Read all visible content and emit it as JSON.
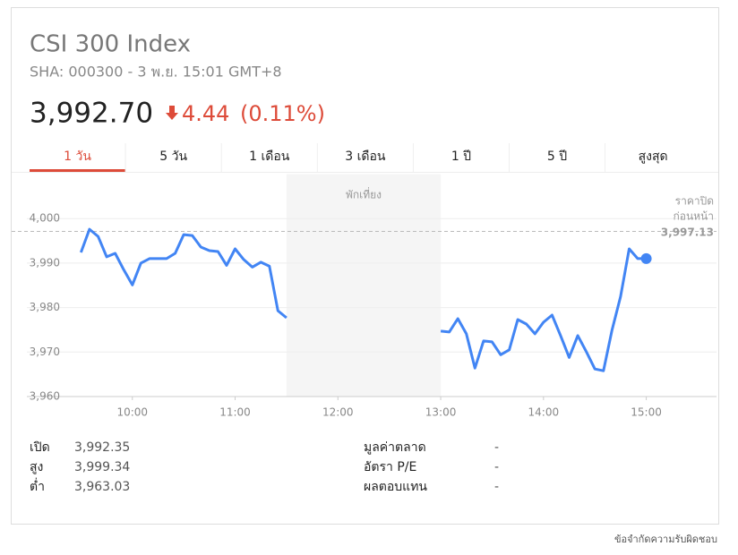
{
  "header": {
    "title": "CSI 300 Index",
    "subtitle": "SHA: 000300 - 3 พ.ย. 15:01 GMT+8",
    "price": "3,992.70",
    "change": "4.44",
    "change_percent": "(0.11%)"
  },
  "tabs": {
    "labels": [
      "1 วัน",
      "5 วัน",
      "1 เดือน",
      "3 เดือน",
      "1 ปี",
      "5 ปี",
      "สูงสุด"
    ],
    "selected": 0
  },
  "chart_data": {
    "type": "line",
    "x": [
      570,
      575,
      580,
      585,
      590,
      595,
      600,
      605,
      610,
      615,
      620,
      625,
      630,
      635,
      640,
      645,
      650,
      655,
      660,
      665,
      670,
      675,
      680,
      685,
      690,
      735,
      780,
      785,
      790,
      795,
      800,
      805,
      810,
      815,
      820,
      825,
      830,
      835,
      840,
      845,
      850,
      855,
      860,
      865,
      870,
      875,
      880,
      885,
      890,
      895,
      900
    ],
    "series": [
      {
        "name": "CSI 300 Index",
        "color": "#4285f4",
        "values": [
          3992.4,
          3997.6,
          3996.0,
          3991.4,
          3992.2,
          3988.5,
          3985.1,
          3990.0,
          3991.0,
          3991.0,
          3991.0,
          3992.2,
          3996.4,
          3996.2,
          3993.6,
          3992.8,
          3992.6,
          3989.5,
          3993.2,
          3990.8,
          3989.1,
          3990.2,
          3989.3,
          3979.3,
          3977.7,
          null,
          3974.7,
          3974.5,
          3977.5,
          3974.1,
          3966.4,
          3972.5,
          3972.3,
          3969.4,
          3970.5,
          3977.3,
          3976.3,
          3974.1,
          3976.7,
          3978.3,
          3973.7,
          3968.8,
          3973.7,
          3970.1,
          3966.2,
          3965.8,
          3974.9,
          3982.5,
          3993.2,
          3991.0,
          3991.0
        ]
      }
    ],
    "xlim": [
      540,
      941
    ],
    "xticks": [
      {
        "value": 600,
        "label": "10:00"
      },
      {
        "value": 660,
        "label": "11:00"
      },
      {
        "value": 720,
        "label": "12:00"
      },
      {
        "value": 780,
        "label": "13:00"
      },
      {
        "value": 840,
        "label": "14:00"
      },
      {
        "value": 900,
        "label": "15:00"
      }
    ],
    "ylim": [
      3960,
      4010
    ],
    "yticks": [
      {
        "value": 3960,
        "label": "3,960"
      },
      {
        "value": 3970,
        "label": "3,970"
      },
      {
        "value": 3980,
        "label": "3,980"
      },
      {
        "value": 3990,
        "label": "3,990"
      },
      {
        "value": 4000,
        "label": "4,000"
      }
    ],
    "grid": true,
    "break": {
      "label": "พักเที่ยง",
      "start": 690,
      "end": 780
    },
    "previous_close": {
      "label_lines": [
        "ราคาปิด",
        "ก่อนหน้า"
      ],
      "value": 3997.13,
      "value_label": "3,997.13"
    }
  },
  "stats": {
    "left": [
      [
        "เปิด",
        "3,992.35"
      ],
      [
        "สูง",
        "3,999.34"
      ],
      [
        "ต่ำ",
        "3,963.03"
      ]
    ],
    "right": [
      [
        "มูลค่าตลาด",
        "-"
      ],
      [
        "อัตรา P/E",
        "-"
      ],
      [
        "ผลตอบแทน",
        "-"
      ]
    ]
  },
  "footer": "ข้อจำกัดความรับผิดชอบ"
}
